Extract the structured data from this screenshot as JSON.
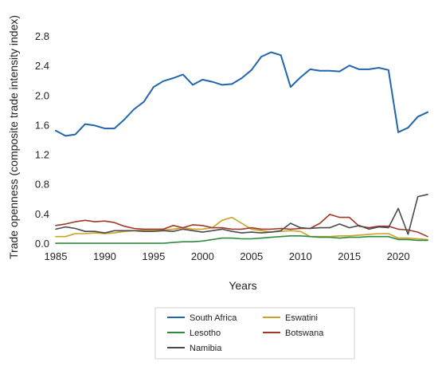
{
  "chart_data": {
    "type": "line",
    "title": "",
    "xlabel": "Years",
    "ylabel": "Trade openness (composite trade intensity index)",
    "xlim": [
      1985,
      2023
    ],
    "ylim": [
      0,
      2.8
    ],
    "xticks": [
      1985,
      1990,
      1995,
      2000,
      2005,
      2010,
      2015,
      2020
    ],
    "xtick_labels": [
      "1985",
      "1990",
      "1995",
      "2000",
      "2005",
      "2010",
      "2015",
      "2020"
    ],
    "yticks": [
      0,
      0.4,
      0.8,
      1.2,
      1.6,
      2.0,
      2.4,
      2.8
    ],
    "ytick_labels": [
      "0.0",
      "0.4",
      "0.8",
      "1.2",
      "1.6",
      "2.0",
      "2.4",
      "2.8"
    ],
    "grid": false,
    "legend_position": "bottom",
    "x": [
      1985,
      1986,
      1987,
      1988,
      1989,
      1990,
      1991,
      1992,
      1993,
      1994,
      1995,
      1996,
      1997,
      1998,
      1999,
      2000,
      2001,
      2002,
      2003,
      2004,
      2005,
      2006,
      2007,
      2008,
      2009,
      2010,
      2011,
      2012,
      2013,
      2014,
      2015,
      2016,
      2017,
      2018,
      2019,
      2020,
      2021,
      2022,
      2023
    ],
    "series": [
      {
        "name": "South Africa",
        "color": "#2166ac",
        "values": [
          1.53,
          1.46,
          1.48,
          1.62,
          1.6,
          1.56,
          1.56,
          1.68,
          1.82,
          1.92,
          2.12,
          2.2,
          2.24,
          2.29,
          2.15,
          2.22,
          2.19,
          2.15,
          2.16,
          2.24,
          2.35,
          2.53,
          2.59,
          2.55,
          2.12,
          2.25,
          2.36,
          2.34,
          2.34,
          2.33,
          2.41,
          2.36,
          2.36,
          2.38,
          2.35,
          1.51,
          1.57,
          1.72,
          1.78
        ]
      },
      {
        "name": "Eswatini",
        "color": "#c9a227",
        "values": [
          0.1,
          0.1,
          0.14,
          0.14,
          0.15,
          0.14,
          0.15,
          0.17,
          0.18,
          0.19,
          0.19,
          0.19,
          0.2,
          0.22,
          0.2,
          0.2,
          0.22,
          0.32,
          0.36,
          0.28,
          0.2,
          0.18,
          0.16,
          0.17,
          0.18,
          0.17,
          0.1,
          0.1,
          0.1,
          0.11,
          0.11,
          0.12,
          0.13,
          0.14,
          0.14,
          0.08,
          0.08,
          0.07,
          0.06
        ]
      },
      {
        "name": "Lesotho",
        "color": "#2e8b3e",
        "values": [
          0.01,
          0.01,
          0.01,
          0.01,
          0.01,
          0.01,
          0.01,
          0.01,
          0.01,
          0.01,
          0.01,
          0.01,
          0.02,
          0.03,
          0.03,
          0.04,
          0.06,
          0.08,
          0.08,
          0.07,
          0.07,
          0.08,
          0.09,
          0.1,
          0.11,
          0.11,
          0.1,
          0.09,
          0.09,
          0.08,
          0.09,
          0.09,
          0.1,
          0.1,
          0.1,
          0.06,
          0.06,
          0.05,
          0.05
        ]
      },
      {
        "name": "Botswana",
        "color": "#a0382a",
        "values": [
          0.25,
          0.27,
          0.3,
          0.32,
          0.3,
          0.31,
          0.29,
          0.24,
          0.21,
          0.2,
          0.2,
          0.2,
          0.25,
          0.22,
          0.26,
          0.25,
          0.22,
          0.22,
          0.2,
          0.2,
          0.22,
          0.2,
          0.2,
          0.21,
          0.2,
          0.21,
          0.21,
          0.28,
          0.4,
          0.36,
          0.36,
          0.24,
          0.22,
          0.24,
          0.24,
          0.2,
          0.19,
          0.16,
          0.1
        ]
      },
      {
        "name": "Namibia",
        "color": "#4a4a4a",
        "values": [
          0.2,
          0.23,
          0.21,
          0.17,
          0.17,
          0.15,
          0.18,
          0.18,
          0.18,
          0.17,
          0.17,
          0.18,
          0.17,
          0.2,
          0.18,
          0.16,
          0.18,
          0.2,
          0.17,
          0.15,
          0.16,
          0.15,
          0.16,
          0.18,
          0.28,
          0.22,
          0.21,
          0.22,
          0.22,
          0.27,
          0.22,
          0.25,
          0.2,
          0.23,
          0.22,
          0.48,
          0.13,
          0.64,
          0.67
        ]
      }
    ],
    "legend_layout": [
      {
        "series": 0,
        "col": 0,
        "row": 0
      },
      {
        "series": 1,
        "col": 1,
        "row": 0
      },
      {
        "series": 2,
        "col": 0,
        "row": 1
      },
      {
        "series": 3,
        "col": 1,
        "row": 1
      },
      {
        "series": 4,
        "col": 0,
        "row": 2
      }
    ]
  }
}
